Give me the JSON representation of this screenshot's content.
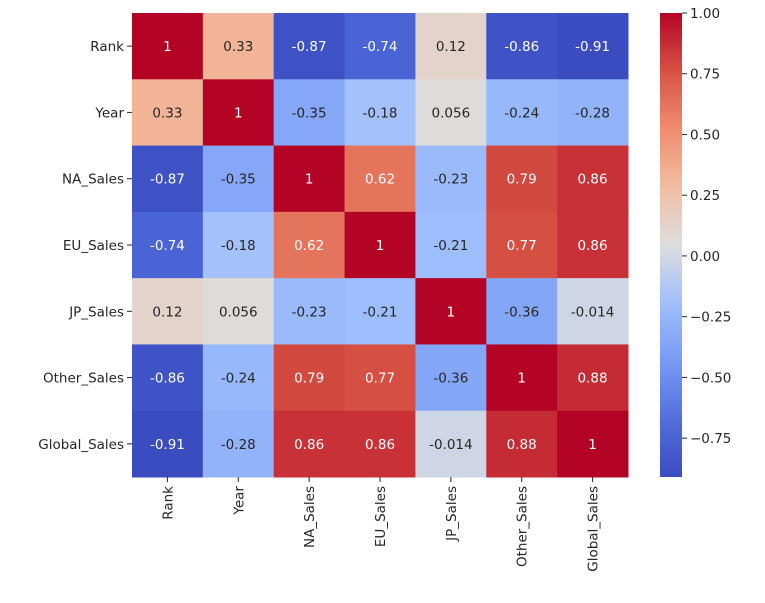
{
  "chart_data": {
    "type": "heatmap",
    "title": "",
    "xlabel": "",
    "ylabel": "",
    "colormap": "coolwarm",
    "x_labels": [
      "Rank",
      "Year",
      "NA_Sales",
      "EU_Sales",
      "JP_Sales",
      "Other_Sales",
      "Global_Sales"
    ],
    "y_labels": [
      "Rank",
      "Year",
      "NA_Sales",
      "EU_Sales",
      "JP_Sales",
      "Other_Sales",
      "Global_Sales"
    ],
    "values": [
      [
        1,
        0.33,
        -0.87,
        -0.74,
        0.12,
        -0.86,
        -0.91
      ],
      [
        0.33,
        1,
        -0.35,
        -0.18,
        0.056,
        -0.24,
        -0.28
      ],
      [
        -0.87,
        -0.35,
        1,
        0.62,
        -0.23,
        0.79,
        0.86
      ],
      [
        -0.74,
        -0.18,
        0.62,
        1,
        -0.21,
        0.77,
        0.86
      ],
      [
        0.12,
        0.056,
        -0.23,
        -0.21,
        1,
        -0.36,
        -0.014
      ],
      [
        -0.86,
        -0.24,
        0.79,
        0.77,
        -0.36,
        1,
        0.88
      ],
      [
        -0.91,
        -0.28,
        0.86,
        0.86,
        -0.014,
        0.88,
        1
      ]
    ],
    "annotations": [
      [
        "1",
        "0.33",
        "-0.87",
        "-0.74",
        "0.12",
        "-0.86",
        "-0.91"
      ],
      [
        "0.33",
        "1",
        "-0.35",
        "-0.18",
        "0.056",
        "-0.24",
        "-0.28"
      ],
      [
        "-0.87",
        "-0.35",
        "1",
        "0.62",
        "-0.23",
        "0.79",
        "0.86"
      ],
      [
        "-0.74",
        "-0.18",
        "0.62",
        "1",
        "-0.21",
        "0.77",
        "0.86"
      ],
      [
        "0.12",
        "0.056",
        "-0.23",
        "-0.21",
        "1",
        "-0.36",
        "-0.014"
      ],
      [
        "-0.86",
        "-0.24",
        "0.79",
        "0.77",
        "-0.36",
        "1",
        "0.88"
      ],
      [
        "-0.91",
        "-0.28",
        "0.86",
        "0.86",
        "-0.014",
        "0.88",
        "1"
      ]
    ],
    "colorbar": {
      "range": [
        -0.91,
        1.0
      ],
      "ticks": [
        1.0,
        0.75,
        0.5,
        0.25,
        0.0,
        -0.25,
        -0.5,
        -0.75
      ],
      "tick_labels": [
        "1.00",
        "0.75",
        "0.50",
        "0.25",
        "0.00",
        "−0.25",
        "−0.50",
        "−0.75"
      ],
      "placement": "right"
    },
    "grid": false
  }
}
